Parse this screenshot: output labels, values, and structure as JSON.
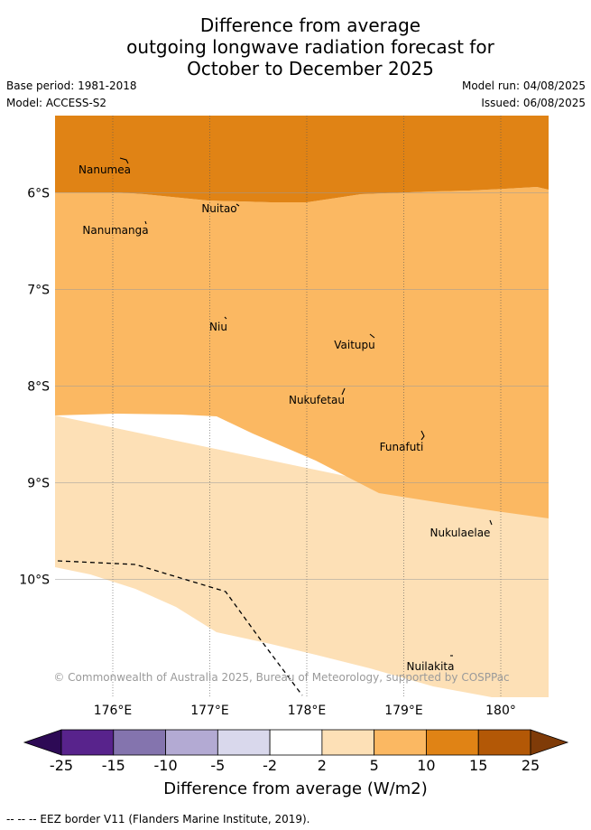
{
  "title": {
    "line1": "Difference from average",
    "line2": "outgoing longwave radiation forecast for",
    "line3": "October to December 2025"
  },
  "meta": {
    "base_period": "Base period: 1981-2018",
    "model": "Model: ACCESS-S2",
    "model_run": "Model run: 04/08/2025",
    "issued": "Issued: 06/08/2025"
  },
  "map": {
    "lon_range": [
      175.5,
      180.5
    ],
    "lat_range": [
      -11.2,
      -5.2
    ],
    "lon_ticks": [
      {
        "lon": 176,
        "label": "176°E"
      },
      {
        "lon": 177,
        "label": "177°E"
      },
      {
        "lon": 178,
        "label": "178°E"
      },
      {
        "lon": 179,
        "label": "179°E"
      },
      {
        "lon": 180,
        "label": "180°"
      }
    ],
    "lat_ticks": [
      {
        "lat": -6,
        "label": "6°S"
      },
      {
        "lat": -7,
        "label": "7°S"
      },
      {
        "lat": -8,
        "label": "8°S"
      },
      {
        "lat": -9,
        "label": "9°S"
      },
      {
        "lat": -10,
        "label": "10°S"
      }
    ],
    "islands": [
      {
        "name": "Nanumea",
        "lon": 176.1,
        "lat": -5.66
      },
      {
        "name": "Nuitao",
        "lon": 177.3,
        "lat": -6.11
      },
      {
        "name": "Nanumanga",
        "lon": 176.32,
        "lat": -6.29
      },
      {
        "name": "Niu",
        "lon": 177.34,
        "lat": -7.29
      },
      {
        "name": "Vaitupu",
        "lon": 178.68,
        "lat": -7.48
      },
      {
        "name": "Nukufetau",
        "lon": 178.37,
        "lat": -8.02
      },
      {
        "name": "Funafuti",
        "lon": 179.2,
        "lat": -8.52
      },
      {
        "name": "Nukulaelae",
        "lon": 179.83,
        "lat": -9.38
      },
      {
        "name": "Nuilakita",
        "lon": 179.5,
        "lat": -10.77
      }
    ],
    "copyright": "© Commonwealth of Australia 2025, Bureau of Meteorology, supported by COSPPac"
  },
  "colorbar": {
    "colors": [
      "#2d0a55",
      "#58238c",
      "#8474ae",
      "#b3aad3",
      "#d9d8ec",
      "#ffffff",
      "#fde0b6",
      "#fbb862",
      "#e08315",
      "#b35806",
      "#7f3b08"
    ],
    "boundaries": [
      "-25",
      "-15",
      "-10",
      "-5",
      "-2",
      "2",
      "5",
      "10",
      "15",
      "25"
    ],
    "label": "Difference from average (W/m2)"
  },
  "footnote": "-- -- -- EEZ border V11 (Flanders Marine Institute, 2019)."
}
